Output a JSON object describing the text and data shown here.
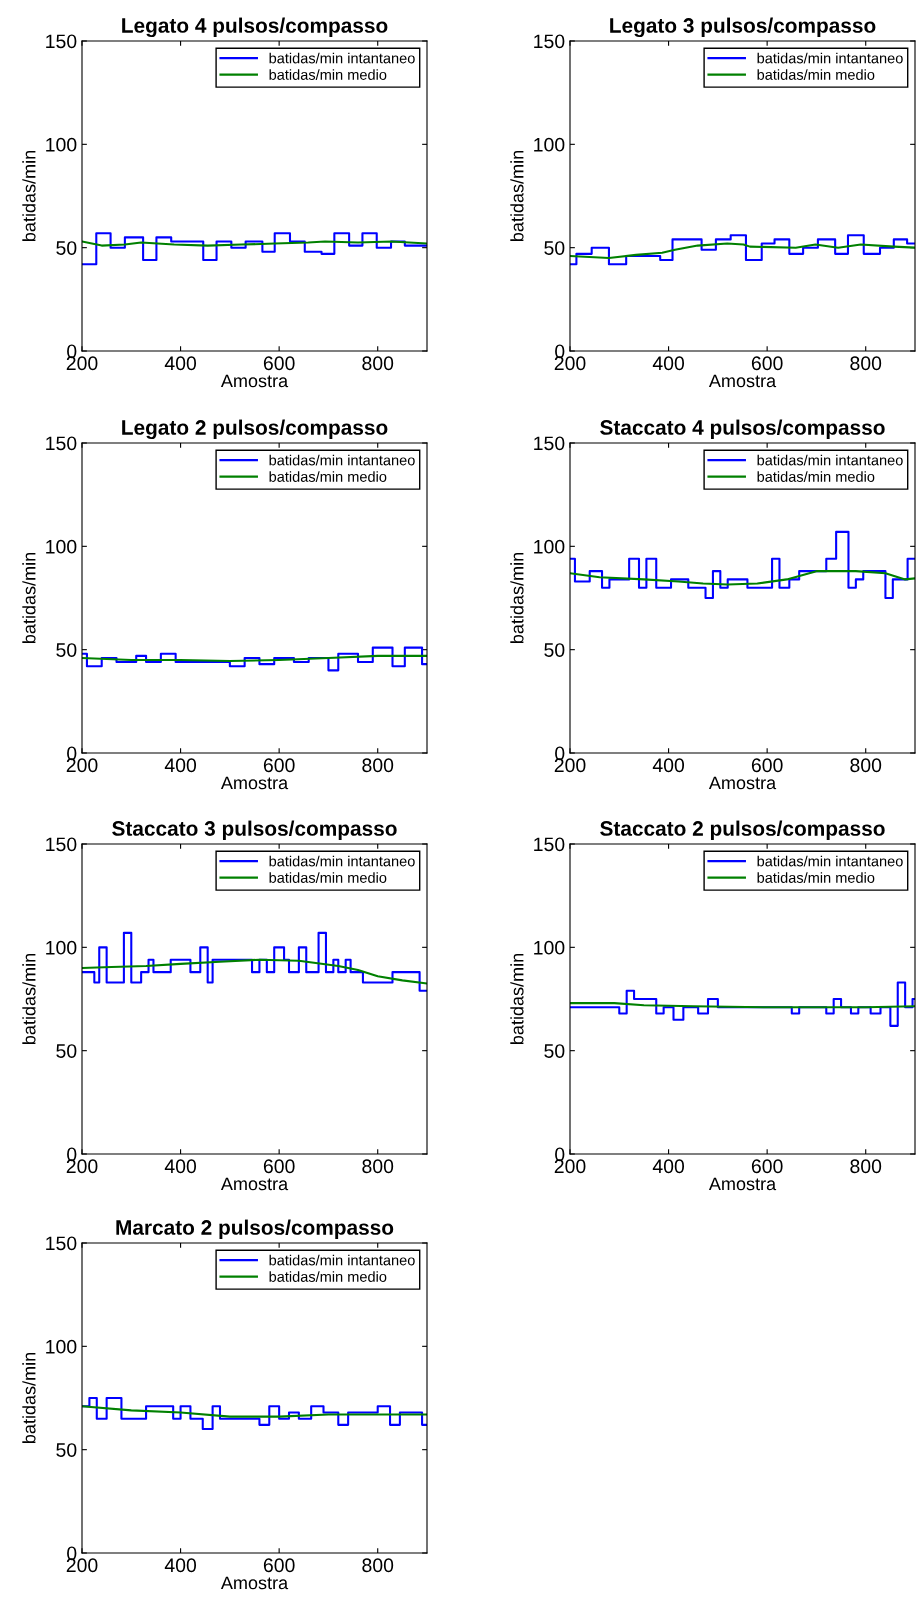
{
  "chart_data": [
    {
      "type": "step",
      "title": "Legato 4 pulsos/compasso",
      "xlabel": "Amostra",
      "ylabel": "batidas/min",
      "xlim": [
        200,
        900
      ],
      "ylim": [
        0,
        150
      ],
      "xticks": [
        200,
        400,
        600,
        800
      ],
      "yticks": [
        0,
        50,
        100,
        150
      ],
      "legend": "top right",
      "grid": false,
      "series": [
        {
          "name": "batidas/min intantaneo",
          "type": "step",
          "color": "#0000ff",
          "x": [
            200,
            229,
            258,
            287,
            324,
            351,
            381,
            446,
            473,
            503,
            532,
            566,
            591,
            622,
            652,
            686,
            712,
            742,
            769,
            798,
            827,
            855,
            900
          ],
          "values": [
            42,
            57,
            50,
            55,
            44,
            55,
            53,
            44,
            53,
            50,
            53,
            48,
            57,
            53,
            48,
            47,
            57,
            51,
            57,
            50,
            53,
            51,
            51
          ]
        },
        {
          "name": "batidas/min medio",
          "type": "line",
          "color": "#008000",
          "x": [
            200,
            240,
            287,
            320,
            387,
            455,
            523,
            591,
            659,
            693,
            760,
            828,
            900
          ],
          "values": [
            53,
            51,
            51.5,
            52.5,
            51.5,
            51,
            51.5,
            52,
            52.5,
            53,
            52.5,
            53,
            52
          ]
        }
      ]
    },
    {
      "type": "step",
      "title": "Legato 3 pulsos/compasso",
      "xlabel": "Amostra",
      "ylabel": "batidas/min",
      "xlim": [
        200,
        900
      ],
      "ylim": [
        0,
        150
      ],
      "xticks": [
        200,
        400,
        600,
        800
      ],
      "yticks": [
        0,
        50,
        100,
        150
      ],
      "legend": "top right",
      "grid": false,
      "series": [
        {
          "name": "batidas/min intantaneo",
          "type": "step",
          "color": "#0000ff",
          "x": [
            200,
            213,
            244,
            279,
            314,
            383,
            408,
            467,
            496,
            526,
            557,
            589,
            615,
            645,
            673,
            703,
            738,
            764,
            796,
            829,
            857,
            884,
            900
          ],
          "values": [
            42,
            47,
            50,
            42,
            46,
            44,
            54,
            49,
            54,
            56,
            44,
            52,
            54,
            47,
            50,
            54,
            47,
            56,
            47,
            50,
            54,
            52,
            52
          ]
        },
        {
          "name": "batidas/min medio",
          "type": "line",
          "color": "#008000",
          "x": [
            200,
            279,
            334,
            387,
            413,
            459,
            519,
            552,
            565,
            658,
            698,
            744,
            790,
            857,
            900
          ],
          "values": [
            46,
            45,
            46.5,
            47.5,
            49,
            51,
            52,
            51.5,
            50.5,
            50,
            51.5,
            50,
            51.5,
            50.5,
            50
          ]
        }
      ]
    },
    {
      "type": "step",
      "title": "Legato 2 pulsos/compasso",
      "xlabel": "Amostra",
      "ylabel": "batidas/min",
      "xlim": [
        200,
        900
      ],
      "ylim": [
        0,
        150
      ],
      "xticks": [
        200,
        400,
        600,
        800
      ],
      "yticks": [
        0,
        50,
        100,
        150
      ],
      "legend": "top right",
      "grid": false,
      "series": [
        {
          "name": "batidas/min intantaneo",
          "type": "step",
          "color": "#0000ff",
          "x": [
            200,
            210,
            240,
            270,
            310,
            330,
            360,
            390,
            500,
            530,
            560,
            590,
            630,
            660,
            700,
            720,
            760,
            790,
            830,
            855,
            890,
            900
          ],
          "values": [
            48,
            42,
            46,
            44,
            47,
            44,
            48,
            44,
            42,
            46,
            43,
            46,
            44,
            46,
            40,
            48,
            44,
            51,
            42,
            51,
            43,
            43
          ]
        },
        {
          "name": "batidas/min medio",
          "type": "line",
          "color": "#008000",
          "x": [
            200,
            300,
            400,
            500,
            600,
            700,
            800,
            900
          ],
          "values": [
            46,
            45,
            45,
            44.5,
            45,
            46,
            47,
            47
          ]
        }
      ]
    },
    {
      "type": "step",
      "title": "Staccato 4 pulsos/compasso",
      "xlabel": "Amostra",
      "ylabel": "batidas/min",
      "xlim": [
        200,
        900
      ],
      "ylim": [
        0,
        150
      ],
      "xticks": [
        200,
        400,
        600,
        800
      ],
      "yticks": [
        0,
        50,
        100,
        150
      ],
      "legend": "top right",
      "grid": false,
      "series": [
        {
          "name": "batidas/min intantaneo",
          "type": "step",
          "color": "#0000ff",
          "x": [
            200,
            210,
            240,
            265,
            280,
            320,
            340,
            355,
            375,
            405,
            440,
            475,
            490,
            505,
            520,
            560,
            610,
            625,
            645,
            665,
            720,
            740,
            765,
            780,
            795,
            840,
            855,
            885,
            900
          ],
          "values": [
            94,
            83,
            88,
            80,
            84,
            94,
            80,
            94,
            80,
            84,
            80,
            75,
            88,
            80,
            84,
            80,
            94,
            80,
            84,
            88,
            94,
            107,
            80,
            84,
            88,
            75,
            84,
            94,
            94
          ]
        },
        {
          "name": "batidas/min medio",
          "type": "line",
          "color": "#008000",
          "x": [
            200,
            260,
            350,
            420,
            470,
            520,
            580,
            640,
            700,
            780,
            840,
            880,
            900
          ],
          "values": [
            87,
            85,
            84,
            83,
            82,
            81.5,
            82,
            84,
            88,
            88,
            87,
            84,
            84.5
          ]
        }
      ]
    },
    {
      "type": "step",
      "title": "Staccato 3 pulsos/compasso",
      "xlabel": "Amostra",
      "ylabel": "batidas/min",
      "xlim": [
        200,
        900
      ],
      "ylim": [
        0,
        150
      ],
      "xticks": [
        200,
        400,
        600,
        800
      ],
      "yticks": [
        0,
        50,
        100,
        150
      ],
      "legend": "top right",
      "grid": false,
      "series": [
        {
          "name": "batidas/min intantaneo",
          "type": "step",
          "color": "#0000ff",
          "x": [
            200,
            225,
            235,
            250,
            285,
            300,
            320,
            335,
            345,
            380,
            420,
            440,
            455,
            465,
            545,
            560,
            575,
            590,
            610,
            620,
            640,
            655,
            680,
            695,
            710,
            720,
            735,
            745,
            770,
            830,
            885,
            900
          ],
          "values": [
            88,
            83,
            100,
            83,
            107,
            83,
            88,
            94,
            88,
            94,
            88,
            100,
            83,
            94,
            88,
            94,
            88,
            100,
            94,
            88,
            100,
            88,
            107,
            88,
            94,
            88,
            94,
            88,
            83,
            88,
            79,
            79
          ]
        },
        {
          "name": "batidas/min medio",
          "type": "line",
          "color": "#008000",
          "x": [
            200,
            260,
            330,
            400,
            480,
            560,
            640,
            720,
            760,
            800,
            850,
            900
          ],
          "values": [
            90,
            90.5,
            91,
            92,
            93,
            94,
            93.5,
            91,
            89,
            86,
            84,
            82.5
          ]
        }
      ]
    },
    {
      "type": "step",
      "title": "Staccato 2 pulsos/compasso",
      "xlabel": "Amostra",
      "ylabel": "batidas/min",
      "xlim": [
        200,
        900
      ],
      "ylim": [
        0,
        150
      ],
      "xticks": [
        200,
        400,
        600,
        800
      ],
      "yticks": [
        0,
        50,
        100,
        150
      ],
      "legend": "top right",
      "grid": false,
      "series": [
        {
          "name": "batidas/min intantaneo",
          "type": "step",
          "color": "#0000ff",
          "x": [
            200,
            300,
            315,
            330,
            375,
            390,
            410,
            430,
            460,
            480,
            500,
            650,
            665,
            720,
            735,
            750,
            770,
            785,
            810,
            830,
            850,
            865,
            880,
            895,
            900
          ],
          "values": [
            71,
            68,
            79,
            75,
            68,
            71,
            65,
            71,
            68,
            75,
            71,
            68,
            71,
            68,
            75,
            71,
            68,
            71,
            68,
            71,
            62,
            83,
            71,
            75,
            75
          ]
        },
        {
          "name": "batidas/min medio",
          "type": "line",
          "color": "#008000",
          "x": [
            200,
            290,
            350,
            450,
            600,
            800,
            900
          ],
          "values": [
            73,
            73,
            72,
            71.5,
            71,
            71,
            71.5
          ]
        }
      ]
    },
    {
      "type": "step",
      "title": "Marcato 2 pulsos/compasso",
      "xlabel": "Amostra",
      "ylabel": "batidas/min",
      "xlim": [
        200,
        900
      ],
      "ylim": [
        0,
        150
      ],
      "xticks": [
        200,
        400,
        600,
        800
      ],
      "yticks": [
        0,
        50,
        100,
        150
      ],
      "legend": "top right",
      "grid": false,
      "series": [
        {
          "name": "batidas/min intantaneo",
          "type": "step",
          "color": "#0000ff",
          "x": [
            200,
            215,
            230,
            250,
            280,
            330,
            385,
            400,
            420,
            445,
            465,
            480,
            560,
            580,
            600,
            620,
            640,
            665,
            690,
            720,
            740,
            800,
            825,
            845,
            890,
            900
          ],
          "values": [
            71,
            75,
            65,
            75,
            65,
            71,
            65,
            71,
            65,
            60,
            71,
            65,
            62,
            71,
            65,
            68,
            65,
            71,
            68,
            62,
            68,
            71,
            62,
            68,
            62,
            62
          ]
        },
        {
          "name": "batidas/min medio",
          "type": "line",
          "color": "#008000",
          "x": [
            200,
            300,
            400,
            500,
            600,
            700,
            800,
            900
          ],
          "values": [
            71,
            69,
            68,
            66,
            66,
            67,
            67,
            67
          ]
        }
      ]
    }
  ]
}
